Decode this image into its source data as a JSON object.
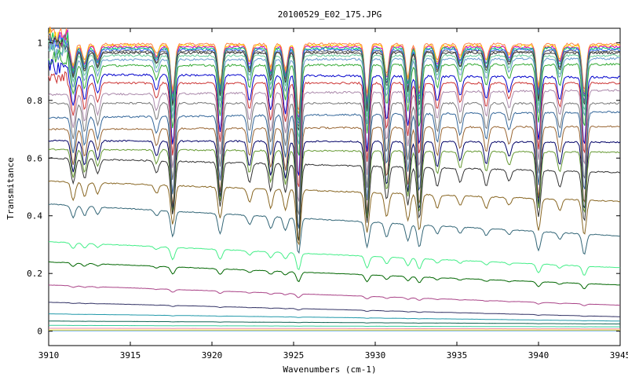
{
  "chart_data": {
    "type": "line",
    "title": "20100529_E02_175.JPG",
    "xlabel": "Wavenumbers (cm-1)",
    "ylabel": "Transmitance",
    "xlim": [
      3910,
      3945
    ],
    "ylim": [
      -0.05,
      1.05
    ],
    "xticks": [
      3910,
      3915,
      3920,
      3925,
      3930,
      3935,
      3940,
      3945
    ],
    "yticks": [
      0,
      0.2,
      0.4,
      0.6,
      0.8,
      1
    ],
    "ytick_labels": [
      "0",
      "0.2",
      "0.4",
      "0.6",
      "0.8",
      "1"
    ],
    "grid": false,
    "legend": "none",
    "absorption_lines": [
      {
        "x": 3911.5,
        "depth": 0.25
      },
      {
        "x": 3912.2,
        "depth": 0.2
      },
      {
        "x": 3913.0,
        "depth": 0.15
      },
      {
        "x": 3916.6,
        "depth": 0.12
      },
      {
        "x": 3917.6,
        "depth": 0.55
      },
      {
        "x": 3920.5,
        "depth": 0.45
      },
      {
        "x": 3922.3,
        "depth": 0.2
      },
      {
        "x": 3923.6,
        "depth": 0.28
      },
      {
        "x": 3924.5,
        "depth": 0.3
      },
      {
        "x": 3925.3,
        "depth": 0.82
      },
      {
        "x": 3929.5,
        "depth": 0.6
      },
      {
        "x": 3930.7,
        "depth": 0.35
      },
      {
        "x": 3932.0,
        "depth": 0.4
      },
      {
        "x": 3932.7,
        "depth": 0.55
      },
      {
        "x": 3933.8,
        "depth": 0.2
      },
      {
        "x": 3935.2,
        "depth": 0.15
      },
      {
        "x": 3936.8,
        "depth": 0.18
      },
      {
        "x": 3938.2,
        "depth": 0.12
      },
      {
        "x": 3940.0,
        "depth": 0.5
      },
      {
        "x": 3941.3,
        "depth": 0.18
      },
      {
        "x": 3942.8,
        "depth": 0.55
      }
    ],
    "series": [
      {
        "baseline": [
          0.995,
          0.995
        ],
        "color": "#ff8040"
      },
      {
        "baseline": [
          0.99,
          0.99
        ],
        "color": "#ffcc00"
      },
      {
        "baseline": [
          0.985,
          0.985
        ],
        "color": "#cc00cc"
      },
      {
        "baseline": [
          0.98,
          0.98
        ],
        "color": "#00cc66"
      },
      {
        "baseline": [
          0.975,
          0.975
        ],
        "color": "#3366ff"
      },
      {
        "baseline": [
          0.97,
          0.97
        ],
        "color": "#666666"
      },
      {
        "baseline": [
          0.965,
          0.965
        ],
        "color": "#333333"
      },
      {
        "baseline": [
          0.955,
          0.955
        ],
        "color": "#66cc99"
      },
      {
        "baseline": [
          0.94,
          0.945
        ],
        "color": "#6699cc"
      },
      {
        "baseline": [
          0.92,
          0.925
        ],
        "color": "#33aa33"
      },
      {
        "baseline": [
          0.89,
          0.88
        ],
        "color": "#0000cc"
      },
      {
        "baseline": [
          0.86,
          0.86
        ],
        "color": "#cc3333"
      },
      {
        "baseline": [
          0.82,
          0.835
        ],
        "color": "#aa88aa"
      },
      {
        "baseline": [
          0.79,
          0.79
        ],
        "color": "#777777"
      },
      {
        "baseline": [
          0.74,
          0.76
        ],
        "color": "#336699"
      },
      {
        "baseline": [
          0.7,
          0.71
        ],
        "color": "#996633"
      },
      {
        "baseline": [
          0.66,
          0.655
        ],
        "color": "#000066"
      },
      {
        "baseline": [
          0.63,
          0.62
        ],
        "color": "#669933"
      },
      {
        "baseline": [
          0.6,
          0.55
        ],
        "color": "#333333"
      },
      {
        "baseline": [
          0.52,
          0.45
        ],
        "color": "#886622"
      },
      {
        "baseline": [
          0.44,
          0.33
        ],
        "color": "#336677"
      },
      {
        "baseline": [
          0.31,
          0.22
        ],
        "color": "#44ee88"
      },
      {
        "baseline": [
          0.24,
          0.16
        ],
        "color": "#006600"
      },
      {
        "baseline": [
          0.16,
          0.09
        ],
        "color": "#aa4488"
      },
      {
        "baseline": [
          0.1,
          0.05
        ],
        "color": "#333366"
      },
      {
        "baseline": [
          0.06,
          0.035
        ],
        "color": "#2299aa"
      },
      {
        "baseline": [
          0.035,
          0.025
        ],
        "color": "#116655"
      },
      {
        "baseline": [
          0.02,
          0.015
        ],
        "color": "#33cc99"
      },
      {
        "baseline": [
          0.01,
          0.008
        ],
        "color": "#ee88aa"
      },
      {
        "baseline": [
          0.004,
          0.004
        ],
        "color": "#ffdd00"
      },
      {
        "baseline": [
          0.001,
          0.001
        ],
        "color": "#66aaff"
      }
    ]
  }
}
